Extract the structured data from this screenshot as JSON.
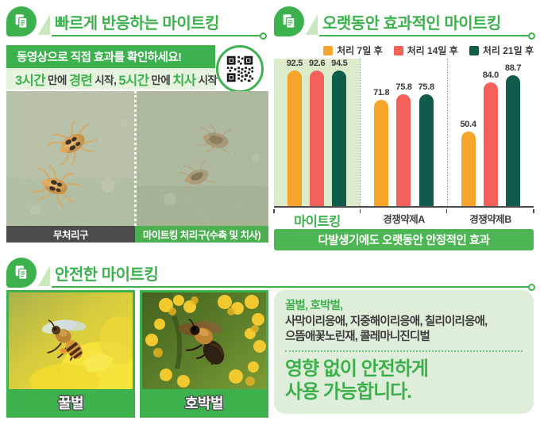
{
  "palette": {
    "brand_green": "#3eb14f",
    "banner_green": "#4db551",
    "light_green_bg": "#e6f3de",
    "chart_highlight": "#dcecca",
    "safe_box_bg": "#dfeeda",
    "series_orange": "#f6a42a",
    "series_coral": "#f4605a",
    "series_deep_green": "#0e5c49",
    "caption_gray": "#4c4a4a",
    "text_dark": "#3c3c3c"
  },
  "section_fast": {
    "title": "빠르게 반응하는 마이트킹",
    "video_banner": "동영상으로 직접 효과를 확인하세요!",
    "effect_segments": [
      "3시간",
      "만에",
      "경련",
      "시작,",
      "5시간",
      "만에",
      "치사",
      "시작"
    ],
    "qr_icon": "qr-code-icon",
    "caption_left": "무처리구",
    "caption_right": "마이트킹 처리구(수축 및 치사)"
  },
  "section_effect": {
    "title": "오랫동안 효과적인 마이트킹",
    "banner": "다발생기에도 오랫동안 안정적인 효과"
  },
  "chart_data": {
    "type": "bar",
    "categories": [
      "마이트킹",
      "경쟁약제A",
      "경쟁약제B"
    ],
    "series": [
      {
        "name": "처리 7일 후",
        "color": "#f6a42a",
        "values": [
          92.5,
          71.8,
          50.4
        ]
      },
      {
        "name": "처리 14일 후",
        "color": "#f4605a",
        "values": [
          92.6,
          75.8,
          84.0
        ]
      },
      {
        "name": "처리 21일 후",
        "color": "#0e5c49",
        "values": [
          94.5,
          75.8,
          88.7
        ]
      }
    ],
    "ylim": [
      0,
      100
    ],
    "grid": false,
    "legend_position": "top-right",
    "highlight_category": "마이트킹",
    "xlabel": "",
    "ylabel": ""
  },
  "section_safe": {
    "title": "안전한 마이트킹",
    "bee_caption_left": "꿀벌",
    "bee_caption_right": "호박벌",
    "species_green": "꿀벌, 호박벌,",
    "species_line1": "사막이리응애, 지중해이리응애, 칠리이리응애,",
    "species_line2": "으뜸애꽃노린재, 콜레마니진디벌",
    "big_text_line1": "영향 없이 안전하게",
    "big_text_line2": "사용 가능합니다."
  }
}
